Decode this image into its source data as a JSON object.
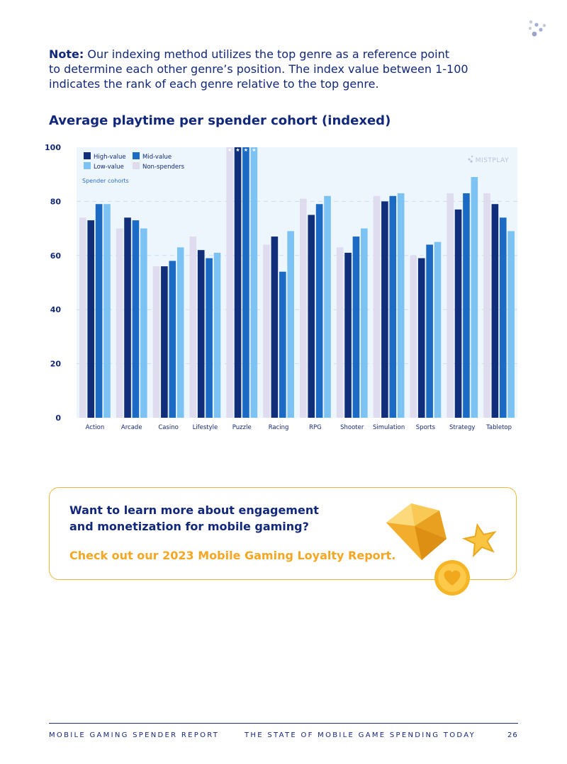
{
  "note": {
    "label": "Note:",
    "line1": " Our indexing method utilizes the top genre as a reference point",
    "line2": "to determine each other genre’s position. The index value between 1-100",
    "line3": "indicates the rank of each genre relative to the top genre."
  },
  "chart_title": "Average playtime per spender cohort (indexed)",
  "chart_data": {
    "type": "bar",
    "categories": [
      "Action",
      "Arcade",
      "Casino",
      "Lifestyle",
      "Puzzle",
      "Racing",
      "RPG",
      "Shooter",
      "Simulation",
      "Sports",
      "Strategy",
      "Tabletop"
    ],
    "series": [
      {
        "name": "Non-spenders",
        "color": "#dfdcef",
        "values": [
          74,
          70,
          56,
          67,
          100,
          64,
          81,
          63,
          82,
          60,
          83,
          83
        ]
      },
      {
        "name": "High-value",
        "color": "#102e7a",
        "values": [
          73,
          74,
          56,
          62,
          100,
          67,
          75,
          61,
          80,
          59,
          77,
          79
        ]
      },
      {
        "name": "Mid-value",
        "color": "#1b6ac4",
        "values": [
          79,
          73,
          58,
          59,
          100,
          54,
          79,
          67,
          82,
          64,
          83,
          74
        ]
      },
      {
        "name": "Low-value",
        "color": "#7cc3f3",
        "values": [
          79,
          70,
          63,
          61,
          100,
          69,
          82,
          70,
          83,
          65,
          89,
          69
        ]
      }
    ],
    "ylim": [
      0,
      100
    ],
    "yticks": [
      0,
      20,
      40,
      60,
      80,
      100
    ],
    "legend": {
      "title": "Spender cohorts",
      "entries": [
        {
          "label": "High-value",
          "color": "#102e7a"
        },
        {
          "label": "Mid-value",
          "color": "#1b6ac4"
        },
        {
          "label": "Low-value",
          "color": "#7cc3f3"
        },
        {
          "label": "Non-spenders",
          "color": "#dfdcef"
        }
      ],
      "placement": "top-left"
    },
    "watermark": "MISTPLAY",
    "top_genre_marker": "★",
    "grid": true
  },
  "cta": {
    "line1": "Want to learn more about engagement",
    "line2": "and monetization for mobile gaming?",
    "link": "Check out our 2023 Mobile Gaming Loyalty Report."
  },
  "footer": {
    "left": "MOBILE GAMING SPENDER REPORT",
    "center": "THE STATE OF MOBILE GAME SPENDING TODAY",
    "page": "26"
  }
}
